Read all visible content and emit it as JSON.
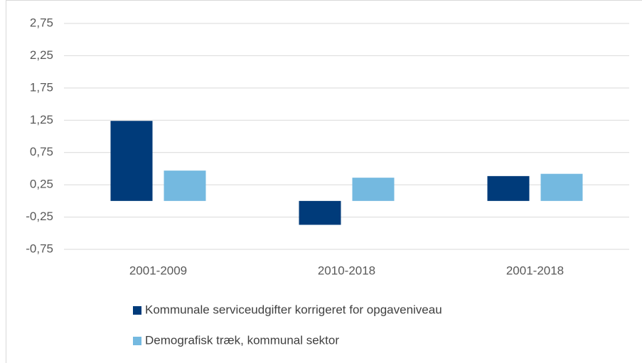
{
  "chart_data": {
    "type": "bar",
    "categories": [
      "2001-2009",
      "2010-2018",
      "2001-2018"
    ],
    "series": [
      {
        "name": "Kommunale serviceudgifter korrigeret for opgaveniveau",
        "color": "#003b7a",
        "values": [
          1.24,
          -0.37,
          0.385
        ]
      },
      {
        "name": "Demografisk træk, kommunal sektor",
        "color": "#74b9e0",
        "values": [
          0.47,
          0.36,
          0.42
        ]
      }
    ],
    "ylim": [
      -0.75,
      2.75
    ],
    "yticks": [
      {
        "value": -0.75,
        "label": "-0,75"
      },
      {
        "value": -0.25,
        "label": "-0,25"
      },
      {
        "value": 0.25,
        "label": "0,25"
      },
      {
        "value": 0.75,
        "label": "0,75"
      },
      {
        "value": 1.25,
        "label": "1,25"
      },
      {
        "value": 1.75,
        "label": "1,75"
      },
      {
        "value": 2.25,
        "label": "2,25"
      },
      {
        "value": 2.75,
        "label": "2,75"
      }
    ],
    "grid": true
  }
}
